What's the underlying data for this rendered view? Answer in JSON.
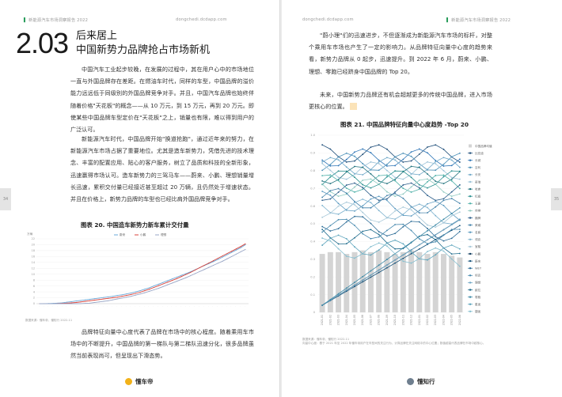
{
  "left_page": {
    "runhead": "新能源汽车市场洞察报告 2022",
    "runhead_site": "dongchedi.dcdapp.com",
    "side_tab": "34",
    "section_number": "2.03",
    "title_line1": "后来居上",
    "title_line2": "中国新势力品牌抢占市场新机",
    "paragraph1": "中国汽车工业起步较晚，在发展的过程中，其在用户心中的市场地位一直与外国品牌存在差距。在燃油车时代，同样的车型，中国品牌的溢价能力远远低于同级别的外国品牌竞争对手。并且，中国汽车品牌也始终伴随着价格\"天花板\"的概念——从 10 万元，到 15 万元，再到 20 万元。即使某些中国品牌车型定价在\"天花板\"之上，销量也有限，难以得到用户的广泛认可。",
    "paragraph2": "新能源汽车时代，中国品牌开始\"换道抢跑\"，通过近年来的努力，在新能源汽车市场占据了重要地位。尤其是造车新势力，凭借先进的技术理念、丰富的配置应用、贴心的客户服务，树立了品质和科技的全新形象，迅速赢得市场认可。造车新势力的三驾马车——蔚来、小鹏、理想销量增长迅速，累积交付量已经接近甚至超过 20 万辆，且仍然处于增速状态。并且在价格上，新势力品牌的车型也已经比肩外国品牌竞争对手。",
    "fig20_title": "图表 20. 中国造车新势力新车累计交付量",
    "fig20_source": "数据来源：懂车帝，懂知行 2022.11",
    "paragraph3": "品牌特征向量中心度代表了品牌在市场中的核心程度。随着乘用车市场中的不断提升，中国品牌的第一梯队与第二梯队迅速分化，很多品牌虽然当前表现尚可，但呈现出下滑态势。",
    "footer_brand": "懂车帝"
  },
  "right_page": {
    "runhead_site": "dongchedi.dcdapp.com",
    "runhead": "新能源汽车市场洞察报告 2022",
    "side_tab": "35",
    "paragraph1": "\"蔚小理\"们的迅速进步，不但逐渐成为新能源汽车市场的标杆，对整个乘用车市场也产生了一定的影响力。从品牌特征向量中心度的趋势来看，新势力品牌从 0 起步，迅速提升。到 2022 年 6 月，蔚来、小鹏、理想、零跑已经跻身中国品牌的 Top 20。",
    "paragraph2": "未来，中国新势力品牌还有机会超越更多的传统中国品牌，进入市场更核心的位置。",
    "fig21_title": "图表 21. 中国品牌特征向量中心度趋势 -Top 20",
    "fig21_source": "数据来源：懂车帝，懂知行 2022.11",
    "fig21_note": "向量中心度：基于 2021 年至 2022 年懂车帝用户在车型间的关注行为，计算品牌在关注网络中的中心位置；数值越高代表品牌在市场中越核心。",
    "footer_brand": "懂知行"
  },
  "fig20": {
    "type": "line",
    "yticks": [
      "0",
      "2",
      "4",
      "6",
      "8",
      "10",
      "12",
      "14",
      "16",
      "18",
      "20",
      "22"
    ],
    "ylabel": "万辆",
    "ylim": [
      0,
      22
    ],
    "legend": [
      "蔚来",
      "小鹏",
      "理想"
    ],
    "colors": [
      "#6aa8d8",
      "#d9433b",
      "#9aa7c7"
    ],
    "xcount": 46,
    "series": [
      {
        "name": "蔚来",
        "values": [
          0,
          0.02,
          0.05,
          0.1,
          0.2,
          0.3,
          0.5,
          0.7,
          0.9,
          1.1,
          1.3,
          1.5,
          1.7,
          1.9,
          2.1,
          2.3,
          2.5,
          2.8,
          3.0,
          3.3,
          3.6,
          4.0,
          4.4,
          4.9,
          5.4,
          6.0,
          6.6,
          7.2,
          7.8,
          8.4,
          9.0,
          9.6,
          10.2,
          10.8,
          11.5,
          12.2,
          12.9,
          13.6,
          14.3,
          15.0,
          15.8,
          16.6,
          17.4,
          18.2,
          19.0,
          20.0
        ]
      },
      {
        "name": "小鹏",
        "values": [
          0,
          0,
          0,
          0.02,
          0.05,
          0.1,
          0.2,
          0.3,
          0.4,
          0.6,
          0.8,
          1.0,
          1.2,
          1.4,
          1.6,
          1.8,
          2.0,
          2.2,
          2.5,
          2.8,
          3.1,
          3.5,
          3.9,
          4.4,
          4.9,
          5.5,
          6.1,
          6.7,
          7.3,
          7.9,
          8.5,
          9.2,
          9.9,
          10.6,
          11.4,
          12.2,
          13.0,
          13.8,
          14.6,
          15.4,
          16.2,
          17.0,
          17.8,
          18.6,
          19.4,
          20.3
        ]
      },
      {
        "name": "理想",
        "values": [
          0,
          0,
          0,
          0,
          0,
          0,
          0,
          0,
          0,
          0.02,
          0.1,
          0.2,
          0.4,
          0.6,
          0.8,
          1.0,
          1.3,
          1.6,
          1.9,
          2.2,
          2.5,
          2.9,
          3.3,
          3.7,
          4.2,
          4.7,
          5.2,
          5.8,
          6.4,
          7.0,
          7.6,
          8.2,
          8.8,
          9.5,
          10.2,
          10.9,
          11.6,
          12.3,
          13.0,
          13.7,
          14.4,
          15.2,
          16.0,
          16.8,
          17.6,
          18.4
        ]
      }
    ]
  },
  "chart_data": {
    "type": "line",
    "title": "图表 21. 中国品牌特征向量中心度趋势 -Top 20",
    "ylim": [
      0,
      1.0
    ],
    "yticks": [
      "0",
      "0.1",
      "0.2",
      "0.3",
      "0.4",
      "0.5",
      "0.6",
      "0.7",
      "0.8",
      "0.9",
      "1.0"
    ],
    "xlabels": [
      "2021-01",
      "2021-02",
      "2021-03",
      "2021-04",
      "2021-05",
      "2021-06",
      "2021-07",
      "2021-08",
      "2021-09",
      "2021-10",
      "2021-11",
      "2021-12",
      "2022-01",
      "2022-02",
      "2022-03",
      "2022-04",
      "2022-05",
      "2022-06"
    ],
    "bar_series": {
      "name": "中国品牌均值",
      "color": "#d4d4d4"
    },
    "legend": [
      "中国品牌均值",
      "比亚迪",
      "长城",
      "吉利",
      "长安",
      "奇瑞",
      "哈弗",
      "红旗",
      "五菱",
      "传祺",
      "魏牌",
      "荣威",
      "名爵",
      "领克",
      "宝骏",
      "小鹏",
      "蔚来",
      "WEY",
      "坦克",
      "理想",
      "欧拉",
      "零跑",
      "星途",
      "捷途"
    ],
    "series_colors": [
      "#d4d4d4",
      "#1f4e79",
      "#2e75b6",
      "#4a90b8",
      "#6fa8c8",
      "#9cc3d8",
      "#1b6f7a",
      "#2a8f8f",
      "#4fb0a8",
      "#8fc9c0",
      "#2b5d8a",
      "#3f7fa8",
      "#5c9ac0",
      "#7fb3cf",
      "#a7c8d8",
      "#0e3a5c",
      "#16527a",
      "#2c6c96",
      "#478aaf",
      "#6ea6c4",
      "#1e6b8c",
      "#3a88a6",
      "#5aa3bb",
      "#86bfd0"
    ]
  }
}
